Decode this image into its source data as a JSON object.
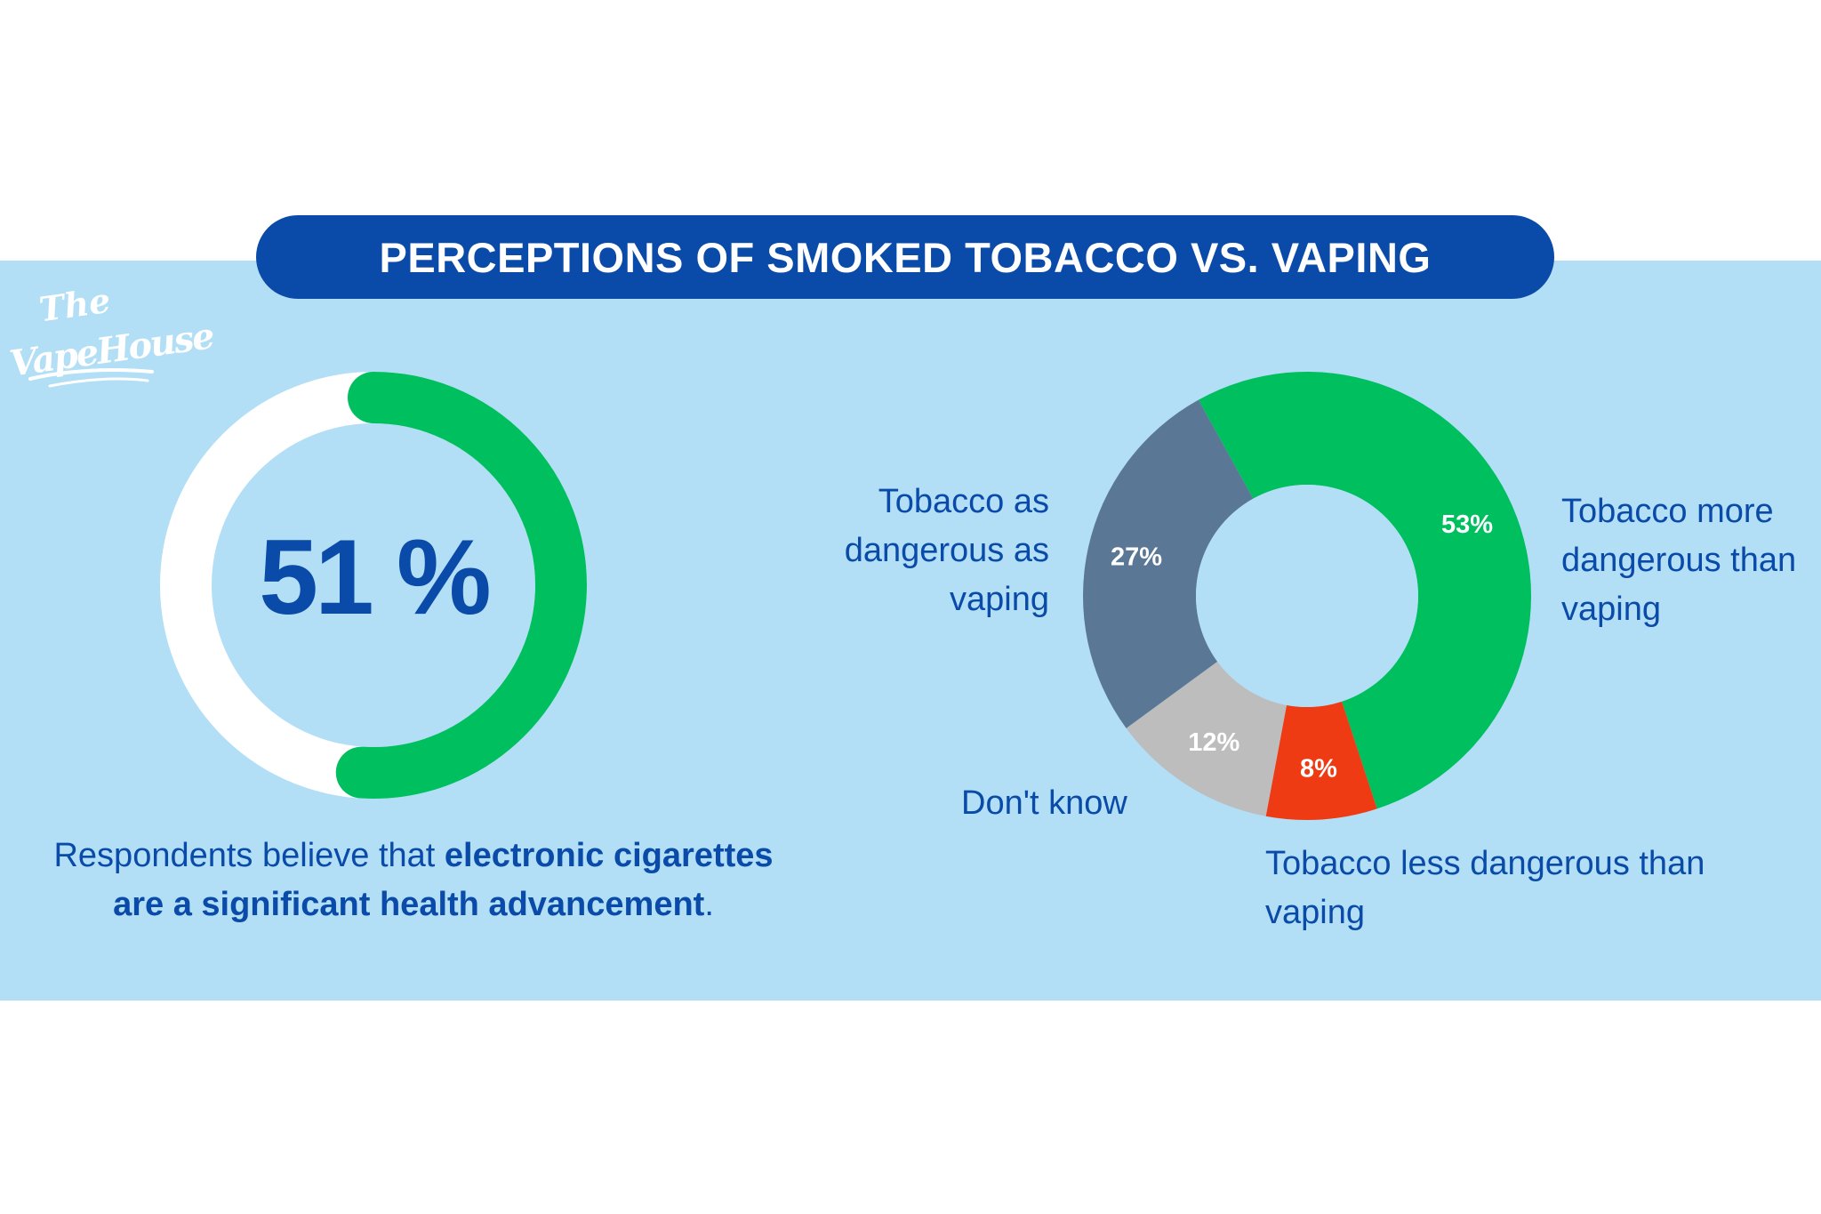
{
  "title": "PERCEPTIONS OF SMOKED TOBACCO VS. VAPING",
  "logo": {
    "line1": "The",
    "line2": "VapeHouse"
  },
  "colors": {
    "background_band": "#b2dff5",
    "title_pill": "#0a4aa8",
    "text_blue": "#0a4aa8",
    "green": "#00bf5f",
    "slate": "#5b7796",
    "grey": "#bdbdbd",
    "red": "#ee3b14",
    "white": "#ffffff"
  },
  "caption": {
    "part1": "Respondents believe that ",
    "bold1": "electronic cigarettes",
    "bold2": "are a significant health advancement",
    "part2": "."
  },
  "chart_data": [
    {
      "type": "pie",
      "variant": "gauge",
      "value_label": "51 %",
      "values": [
        51,
        49
      ],
      "labels": [
        "",
        ""
      ],
      "colors": [
        "#00bf5f",
        "#ffffff"
      ]
    },
    {
      "type": "pie",
      "variant": "donut",
      "categories": [
        "Tobacco more dangerous than vaping",
        "Tobacco less dangerous than vaping",
        "Don't know",
        "Tobacco as dangerous as vaping"
      ],
      "values": [
        53,
        8,
        12,
        27
      ],
      "data_labels": [
        "53%",
        "8%",
        "12%",
        "27%"
      ],
      "colors": [
        "#00bf5f",
        "#ee3b14",
        "#bdbdbd",
        "#5b7796"
      ]
    }
  ]
}
